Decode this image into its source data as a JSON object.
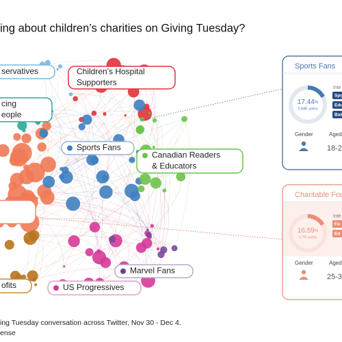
{
  "title": "ing about children’s charities on Giving Tuesday?",
  "clusters": [
    {
      "lines": [
        "servatives"
      ]
    },
    {
      "lines": [
        "Children's Hospital",
        "Supporters"
      ]
    },
    {
      "lines": [
        "cing",
        "eople"
      ]
    },
    {
      "lines": [
        "Sports Fans"
      ]
    },
    {
      "lines": [
        "Canadian Readers",
        "& Educators"
      ]
    },
    {
      "lines": [
        "Marvel Fans"
      ]
    },
    {
      "lines": [
        "US Progressives"
      ]
    },
    {
      "lines": [
        "ofits"
      ]
    }
  ],
  "cards": [
    {
      "title": "Sports Fans",
      "percent": "17.44",
      "percent_unit": "%",
      "users": "2.84K users",
      "interests_heading": "Inte",
      "interests": [
        "Spo",
        "Edu",
        "Bas"
      ],
      "gender_label": "Gender",
      "age_label": "Aged",
      "age": "18-2"
    },
    {
      "title": "Charitable Fou",
      "percent": "16.59",
      "percent_unit": "%",
      "users": "2.7K users",
      "interests_heading": "Inte",
      "interests": [
        "Fa",
        "Ed"
      ],
      "gender_label": "Gender",
      "age_label": "Aged",
      "age": "25-3"
    }
  ],
  "caption": [
    "ing Tuesday conversation across Twitter, Nov 30 - Dec 4.",
    "ense"
  ]
}
